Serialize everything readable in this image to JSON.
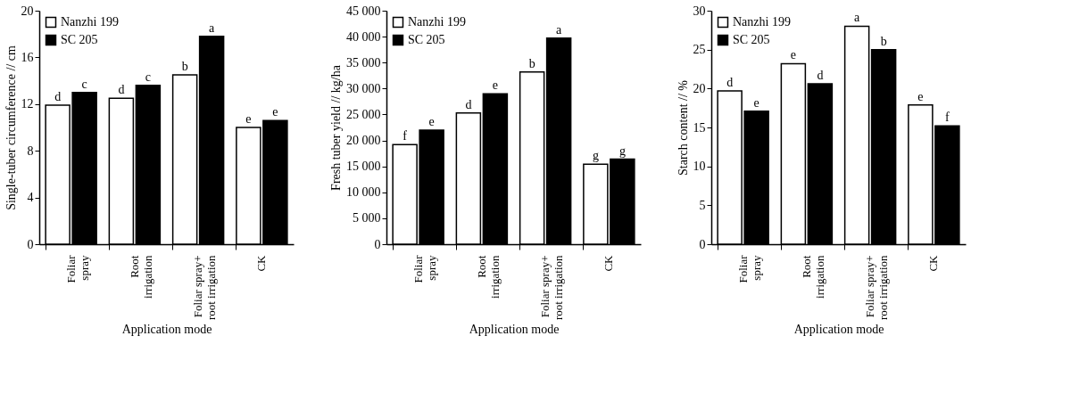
{
  "chart_data": [
    {
      "type": "bar",
      "categories": [
        "Foliar spray",
        "Root irrigation",
        "Foliar spray+ root irrigation",
        "CK"
      ],
      "xlabel": "Application mode",
      "ylabel": "Single-tuber circumference // cm",
      "ylim": [
        0,
        20
      ],
      "yticks": [
        0,
        4,
        8,
        12,
        16,
        20
      ],
      "grid": false,
      "legend": "top left",
      "series": [
        {
          "name": "Nanzhi 199",
          "color": "#ffffff",
          "values": [
            11.9,
            12.5,
            14.5,
            10.0
          ],
          "value_labels": [
            "d",
            "d",
            "b",
            "e"
          ]
        },
        {
          "name": "SC 205",
          "color": "#000000",
          "values": [
            13.0,
            13.6,
            17.8,
            10.6
          ],
          "value_labels": [
            "c",
            "c",
            "a",
            "e"
          ]
        }
      ]
    },
    {
      "type": "bar",
      "categories": [
        "Foliar spray",
        "Root irrigation",
        "Foliar spray+ root irrigation",
        "CK"
      ],
      "xlabel": "Application mode",
      "ylabel": "Fresh tuber yield // kg/ha",
      "ylim": [
        0,
        45000
      ],
      "yticks": [
        0,
        {
          "value": 5000,
          "label": "5 000"
        },
        {
          "value": 10000,
          "label": "10 000"
        },
        {
          "value": 15000,
          "label": "15 000"
        },
        {
          "value": 20000,
          "label": "20 000"
        },
        {
          "value": 25000,
          "label": "25 000"
        },
        {
          "value": 30000,
          "label": "30 000"
        },
        {
          "value": 35000,
          "label": "35 000"
        },
        {
          "value": 40000,
          "label": "40 000"
        },
        {
          "value": 45000,
          "label": "45 000"
        }
      ],
      "grid": false,
      "legend": "top left",
      "series": [
        {
          "name": "Nanzhi 199",
          "color": "#ffffff",
          "values": [
            19200,
            25300,
            33200,
            15400
          ],
          "value_labels": [
            "f",
            "d",
            "b",
            "g"
          ]
        },
        {
          "name": "SC 205",
          "color": "#000000",
          "values": [
            22000,
            29000,
            39700,
            16400
          ],
          "value_labels": [
            "e",
            "e",
            "a",
            "g"
          ]
        }
      ]
    },
    {
      "type": "bar",
      "categories": [
        "Foliar spray",
        "Root irrigation",
        "Foliar spray+ root irrigation",
        "CK"
      ],
      "xlabel": "Application mode",
      "ylabel": "Starch content // %",
      "ylim": [
        0,
        30
      ],
      "yticks": [
        0,
        5,
        10,
        15,
        20,
        25,
        30
      ],
      "grid": false,
      "legend": "top left",
      "series": [
        {
          "name": "Nanzhi 199",
          "color": "#ffffff",
          "values": [
            19.7,
            23.2,
            28.0,
            17.9
          ],
          "value_labels": [
            "d",
            "e",
            "a",
            "e"
          ]
        },
        {
          "name": "SC 205",
          "color": "#000000",
          "values": [
            17.1,
            20.6,
            25.0,
            15.2
          ],
          "value_labels": [
            "e",
            "d",
            "b",
            "f"
          ]
        }
      ]
    }
  ]
}
